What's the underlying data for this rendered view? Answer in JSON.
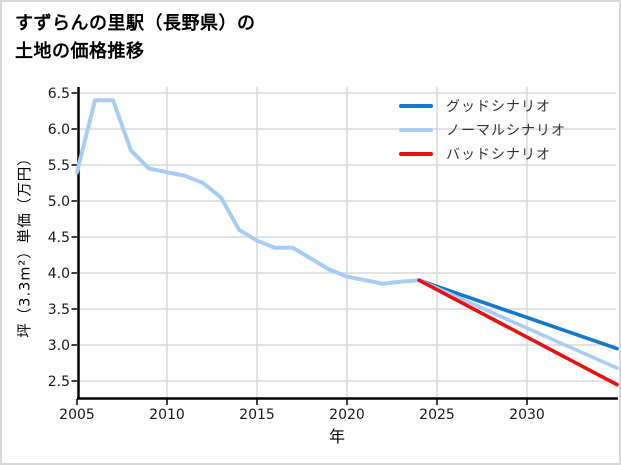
{
  "page": {
    "background": "#ffffff",
    "border_color": "#d8d8d8"
  },
  "title": {
    "line1": "すずらんの里駅（長野県）の",
    "line2": "土地の価格推移"
  },
  "chart_data": {
    "type": "line",
    "title": "すずらんの里駅（長野県）の土地の価格推移",
    "xlabel": "年",
    "ylabel": "坪（3.3m²）単価（万円）",
    "x_ticks": [
      2005,
      2010,
      2015,
      2020,
      2025,
      2030
    ],
    "y_ticks": [
      2.5,
      3.0,
      3.5,
      4.0,
      4.5,
      5.0,
      5.5,
      6.0,
      6.5
    ],
    "xlim": [
      2005,
      2035
    ],
    "ylim": [
      2.25,
      6.6
    ],
    "grid": true,
    "grid_color": "#d9d9d9",
    "axis_color": "#000000",
    "legend_position": "upper right",
    "series": [
      {
        "key": "historical",
        "in_legend": false,
        "color": "#a8cdf4",
        "x": [
          2005,
          2006,
          2007,
          2008,
          2009,
          2010,
          2011,
          2012,
          2013,
          2014,
          2015,
          2016,
          2017,
          2018,
          2019,
          2020,
          2021,
          2022,
          2023,
          2024
        ],
        "values": [
          5.4,
          6.4,
          6.4,
          5.7,
          5.45,
          5.4,
          5.35,
          5.25,
          5.05,
          4.6,
          4.45,
          4.35,
          4.35,
          4.2,
          4.05,
          3.95,
          3.9,
          3.85,
          3.88,
          3.9
        ]
      },
      {
        "key": "good-scenario",
        "name": "グッドシナリオ",
        "in_legend": true,
        "color": "#1678c8",
        "x": [
          2024,
          2035
        ],
        "values": [
          3.9,
          2.95
        ]
      },
      {
        "key": "normal-scenario",
        "name": "ノーマルシナリオ",
        "in_legend": true,
        "color": "#a8cdf4",
        "x": [
          2024,
          2035
        ],
        "values": [
          3.9,
          2.68
        ]
      },
      {
        "key": "bad-scenario",
        "name": "バッドシナリオ",
        "in_legend": true,
        "color": "#ea1010",
        "x": [
          2024,
          2035
        ],
        "values": [
          3.9,
          2.45
        ]
      }
    ]
  }
}
